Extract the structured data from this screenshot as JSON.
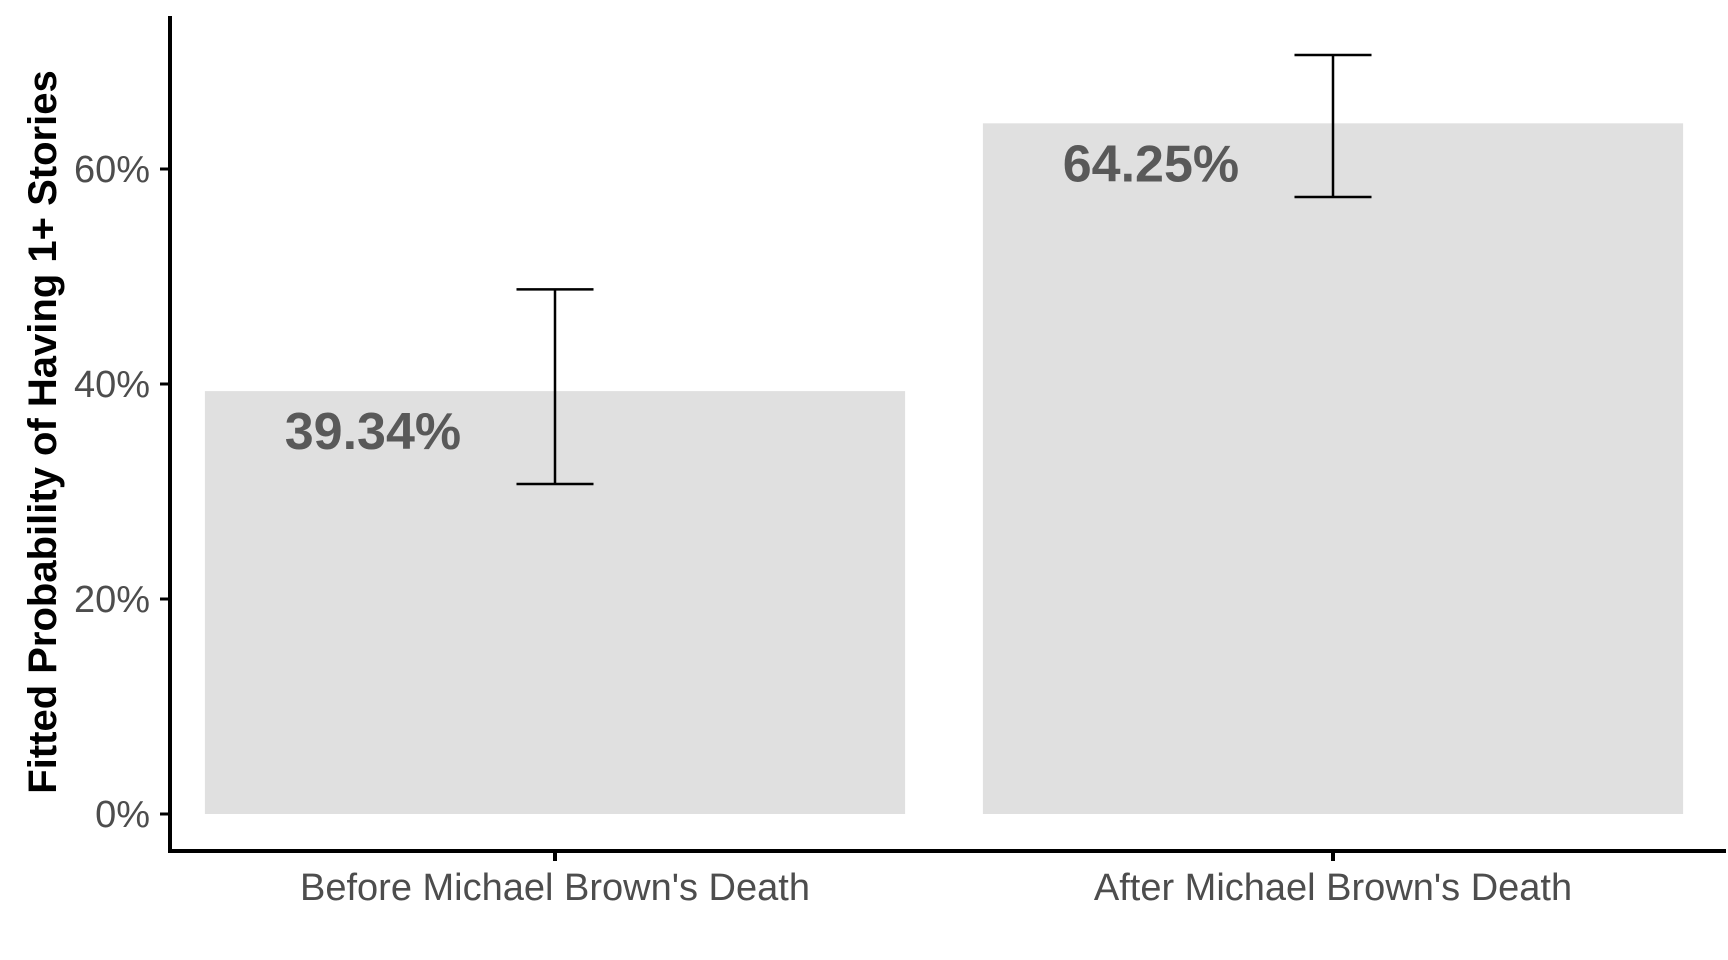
{
  "chart_data": {
    "type": "bar",
    "title": "",
    "xlabel": "",
    "ylabel": "Fitted Probability of Having 1+ Stories",
    "categories": [
      "Before Michael Brown's Death",
      "After Michael Brown's Death"
    ],
    "values": [
      0.3934,
      0.6425
    ],
    "value_labels": [
      "39.34%",
      "64.25%"
    ],
    "error_bars": [
      {
        "lower": 0.307,
        "upper": 0.488
      },
      {
        "lower": 0.574,
        "upper": 0.706
      }
    ],
    "ylim": [
      0,
      0.7
    ],
    "y_ticks": [
      0,
      0.2,
      0.4,
      0.6
    ],
    "y_tick_labels": [
      "0%",
      "20%",
      "40%",
      "60%"
    ],
    "grid": false,
    "legend": "none",
    "colors": {
      "bar": "#e0e0e0",
      "error_bar": "#000000",
      "axis": "#000000",
      "tick_label": "#4d4d4d",
      "value_label": "#595959"
    }
  }
}
